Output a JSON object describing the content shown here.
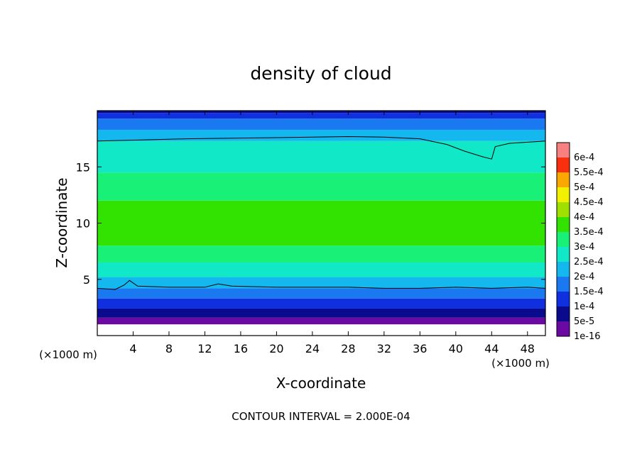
{
  "chart_data": {
    "type": "heatmap",
    "title": "density of cloud",
    "xlabel": "X-coordinate",
    "ylabel": "Z-coordinate",
    "x_unit": "(×1000 m)",
    "y_unit": "(×1000 m)",
    "xlim": [
      0,
      50
    ],
    "ylim": [
      0,
      20
    ],
    "x_ticks": [
      4,
      8,
      12,
      16,
      20,
      24,
      28,
      32,
      36,
      40,
      44,
      48
    ],
    "y_ticks": [
      5,
      10,
      15
    ],
    "contour_interval_label": "CONTOUR INTERVAL = 2.000E-04",
    "colorbar": {
      "levels": [
        {
          "label": "1e-16",
          "color": "#6a0aa3"
        },
        {
          "label": "5e-5",
          "color": "#0a0a8c"
        },
        {
          "label": "1e-4",
          "color": "#1030e0"
        },
        {
          "label": "1.5e-4",
          "color": "#1a78f0"
        },
        {
          "label": "2e-4",
          "color": "#14b8ee"
        },
        {
          "label": "2.5e-4",
          "color": "#10e8c8"
        },
        {
          "label": "3e-4",
          "color": "#18f078"
        },
        {
          "label": "3.5e-4",
          "color": "#32e200"
        },
        {
          "label": "4e-4",
          "color": "#a0e000"
        },
        {
          "label": "4.5e-4",
          "color": "#f0f000"
        },
        {
          "label": "5e-4",
          "color": "#f8a800"
        },
        {
          "label": "5.5e-4",
          "color": "#f83010"
        },
        {
          "label": "6e-4",
          "color": "#f88080"
        }
      ]
    },
    "bands": [
      {
        "z_from": 0.0,
        "z_to": 1.0,
        "level": "none"
      },
      {
        "z_from": 1.0,
        "z_to": 1.6,
        "level": "1e-16"
      },
      {
        "z_from": 1.6,
        "z_to": 2.4,
        "level": "5e-5"
      },
      {
        "z_from": 2.4,
        "z_to": 3.3,
        "level": "1e-4"
      },
      {
        "z_from": 3.3,
        "z_to": 4.2,
        "level": "1.5e-4"
      },
      {
        "z_from": 4.2,
        "z_to": 5.2,
        "level": "2e-4"
      },
      {
        "z_from": 5.2,
        "z_to": 6.5,
        "level": "2.5e-4"
      },
      {
        "z_from": 6.5,
        "z_to": 8.0,
        "level": "3e-4"
      },
      {
        "z_from": 8.0,
        "z_to": 12.0,
        "level": "3.5e-4"
      },
      {
        "z_from": 12.0,
        "z_to": 14.5,
        "level": "3e-4"
      },
      {
        "z_from": 14.5,
        "z_to": 17.3,
        "level": "2.5e-4"
      },
      {
        "z_from": 17.3,
        "z_to": 18.3,
        "level": "2e-4"
      },
      {
        "z_from": 18.3,
        "z_to": 19.3,
        "level": "1.5e-4"
      },
      {
        "z_from": 19.3,
        "z_to": 19.8,
        "level": "1e-4"
      },
      {
        "z_from": 19.8,
        "z_to": 20.0,
        "level": "5e-5"
      }
    ],
    "contours": [
      {
        "name": "upper",
        "points": [
          [
            0,
            17.3
          ],
          [
            5,
            17.4
          ],
          [
            10,
            17.5
          ],
          [
            15,
            17.55
          ],
          [
            20,
            17.6
          ],
          [
            28,
            17.7
          ],
          [
            32,
            17.65
          ],
          [
            36,
            17.5
          ],
          [
            39,
            17.0
          ],
          [
            41,
            16.4
          ],
          [
            43,
            15.9
          ],
          [
            44,
            15.7
          ],
          [
            44.4,
            16.8
          ],
          [
            46,
            17.1
          ],
          [
            50,
            17.3
          ]
        ]
      },
      {
        "name": "lower",
        "points": [
          [
            0,
            4.2
          ],
          [
            2,
            4.1
          ],
          [
            3,
            4.5
          ],
          [
            3.6,
            4.9
          ],
          [
            4.5,
            4.4
          ],
          [
            8,
            4.3
          ],
          [
            12,
            4.3
          ],
          [
            13.5,
            4.6
          ],
          [
            15,
            4.4
          ],
          [
            20,
            4.3
          ],
          [
            28,
            4.3
          ],
          [
            32,
            4.2
          ],
          [
            36,
            4.2
          ],
          [
            40,
            4.3
          ],
          [
            44,
            4.2
          ],
          [
            48,
            4.3
          ],
          [
            50,
            4.2
          ]
        ]
      }
    ]
  }
}
